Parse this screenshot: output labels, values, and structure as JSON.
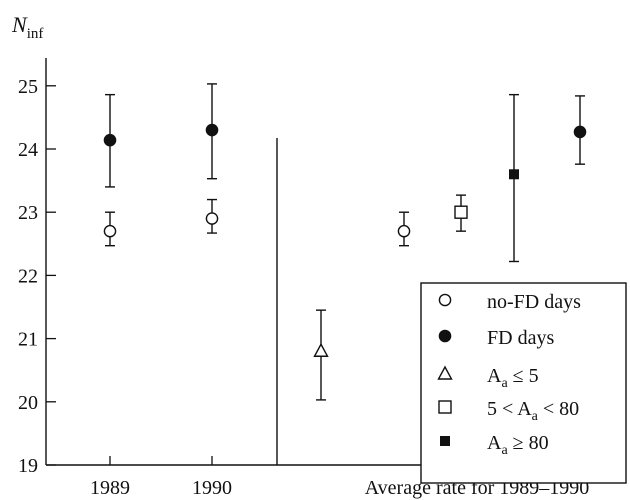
{
  "chart_data": {
    "type": "scatter",
    "title": "",
    "ylabel": "N",
    "ylabel_sub": "inf",
    "ylim": [
      19,
      25.6
    ],
    "yticks": [
      19,
      20,
      21,
      22,
      23,
      24,
      25
    ],
    "categories": [
      "1989",
      "1990",
      "Average rate for 1989–1990"
    ],
    "grid": false,
    "legend_position": "bottom-right",
    "series": [
      {
        "name": "no-FD days",
        "marker": "open-circle",
        "points": [
          {
            "x": "1989",
            "y": 22.7,
            "err_low": 22.47,
            "err_high": 23.0
          },
          {
            "x": "1990",
            "y": 22.9,
            "err_low": 22.67,
            "err_high": 23.2
          },
          {
            "x": "Average rate for 1989–1990",
            "y": 22.7,
            "err_low": 22.47,
            "err_high": 23.0
          }
        ]
      },
      {
        "name": "FD days",
        "marker": "filled-circle",
        "points": [
          {
            "x": "1989",
            "y": 24.14,
            "err_low": 23.4,
            "err_high": 24.86
          },
          {
            "x": "1990",
            "y": 24.3,
            "err_low": 23.53,
            "err_high": 25.03
          },
          {
            "x": "Average rate for 1989–1990",
            "y": 24.27,
            "err_low": 23.76,
            "err_high": 24.84
          }
        ]
      },
      {
        "name": "Aa ≤ 5",
        "marker": "open-triangle",
        "points": [
          {
            "x": "Average rate for 1989–1990",
            "y": 20.8,
            "err_low": 20.03,
            "err_high": 21.45
          }
        ]
      },
      {
        "name": "5 < Aa < 80",
        "marker": "open-square",
        "points": [
          {
            "x": "Average rate for 1989–1990",
            "y": 23.0,
            "err_low": 22.7,
            "err_high": 23.27
          }
        ]
      },
      {
        "name": "Aa ≥ 80",
        "marker": "filled-square",
        "points": [
          {
            "x": "Average rate for 1989–1990",
            "y": 23.6,
            "err_low": 22.22,
            "err_high": 24.86
          }
        ]
      }
    ],
    "legend": [
      {
        "marker": "open-circle",
        "label": "no-FD days"
      },
      {
        "marker": "filled-circle",
        "label": "FD days"
      },
      {
        "marker": "open-triangle",
        "base": "A",
        "sub": "a",
        "rel": "≤ 5"
      },
      {
        "marker": "open-square",
        "pre": "5 <",
        "base": "A",
        "sub": "a",
        "rel": "< 80"
      },
      {
        "marker": "filled-square",
        "base": "A",
        "sub": "a",
        "rel": "≥ 80"
      }
    ]
  }
}
